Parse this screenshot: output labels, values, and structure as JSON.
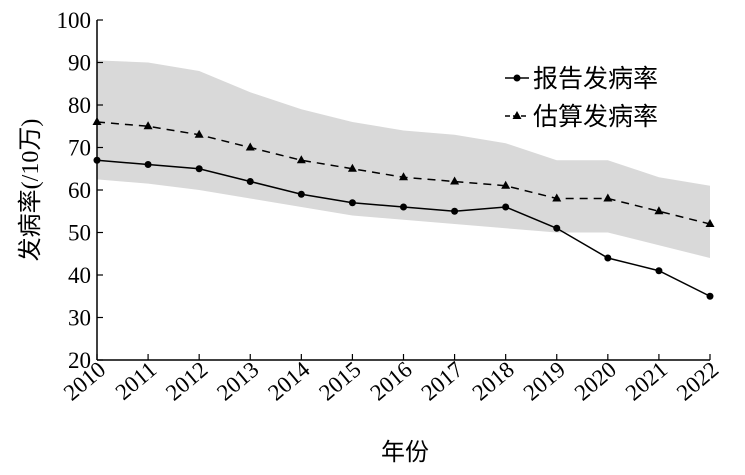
{
  "chart_data": {
    "type": "line",
    "x_label": "年份",
    "y_label": "发病率(/10万)",
    "x": [
      2010,
      2011,
      2012,
      2013,
      2014,
      2015,
      2016,
      2017,
      2018,
      2019,
      2020,
      2021,
      2022
    ],
    "xlim": [
      2010,
      2022
    ],
    "ylim": [
      20,
      100
    ],
    "yticks": [
      20,
      30,
      40,
      50,
      60,
      70,
      80,
      90,
      100
    ],
    "series": [
      {
        "name": "报告发病率",
        "color": "#000000",
        "dash": false,
        "marker": "circle",
        "values": [
          67,
          66,
          65,
          62,
          59,
          57,
          56,
          55,
          56,
          51,
          44,
          41,
          35
        ]
      },
      {
        "name": "估算发病率",
        "color": "#000000",
        "dash": true,
        "marker": "triangle",
        "values": [
          76,
          75,
          73,
          70,
          67,
          65,
          63,
          62,
          61,
          58,
          58,
          55,
          52
        ]
      }
    ],
    "band": {
      "color": "#d9d9d9",
      "upper": [
        90.5,
        90,
        88,
        83,
        79,
        76,
        74,
        73,
        71,
        67,
        67,
        63,
        61
      ],
      "lower": [
        62.5,
        61.5,
        60,
        58,
        56,
        54,
        53,
        52,
        51,
        50,
        50,
        47,
        44
      ]
    },
    "legend": "upper-right"
  }
}
